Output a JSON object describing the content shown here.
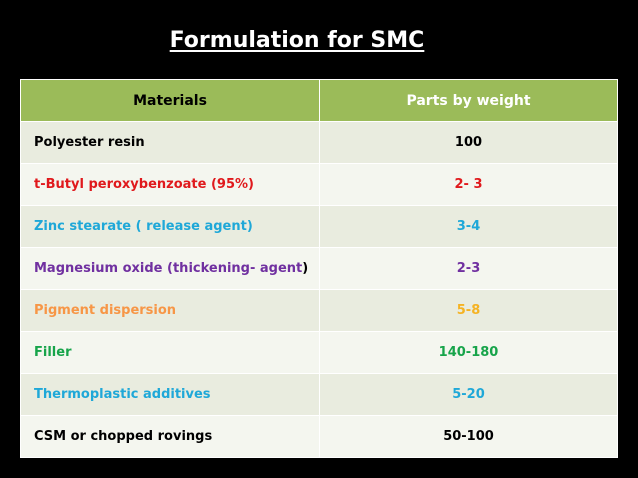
{
  "slide": {
    "title": "Formulation for SMC"
  },
  "table": {
    "headers": [
      "Materials",
      "Parts by weight"
    ],
    "rows": [
      {
        "material": "Polyester resin",
        "parts": "100",
        "color": "#000000"
      },
      {
        "material": "t-Butyl peroxybenzoate (95%)",
        "parts": "2- 3",
        "color": "#e0191c"
      },
      {
        "material": "Zinc stearate ( release agent)",
        "parts": "3-4",
        "color": "#1fa8d8"
      },
      {
        "material": "Magnesium oxide (thickening- agent",
        "material_suffix": ")",
        "parts": "2-3",
        "color": "#7030a0"
      },
      {
        "material": "Pigment dispersion",
        "parts": "5-8",
        "color": "#f79646",
        "parts_color": "#f5b323"
      },
      {
        "material": "Filler",
        "parts": "140-180",
        "color": "#17a44a"
      },
      {
        "material": "Thermoplastic additives",
        "parts": "5-20",
        "color": "#1fa8d8"
      },
      {
        "material": "CSM or chopped rovings",
        "parts": "50-100",
        "color": "#000000"
      }
    ]
  },
  "colors": {
    "background": "#000000",
    "header_fill": "#9bbb59",
    "row_fill_odd": "#e9ecdf",
    "row_fill_even": "#f4f6ef"
  }
}
